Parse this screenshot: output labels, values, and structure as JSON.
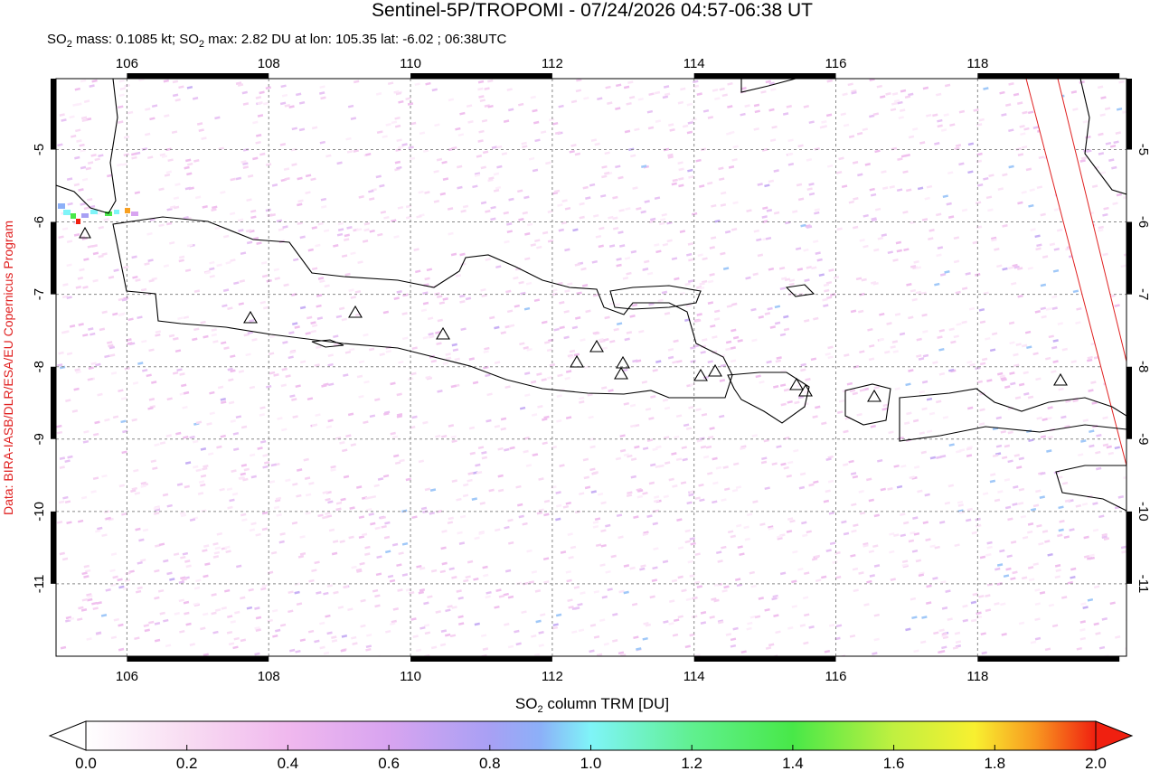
{
  "map": {
    "title": "Sentinel-5P/TROPOMI - 07/24/2026 04:57-06:38 UT",
    "subtitle": [
      "SO",
      "2",
      " mass: 0.1085 kt; SO",
      "2",
      " max: 2.82 DU at lon: 105.35 lat: -6.02 ; 06:38UTC"
    ],
    "credit": "Data: BIRA-IASB/DLR/ESA/EU Copernicus Program",
    "xlim": [
      105,
      120.1
    ],
    "ylim": [
      -12,
      -4.02
    ],
    "xticks": [
      106,
      108,
      110,
      112,
      114,
      116,
      118
    ],
    "yticks": [
      -5,
      -6,
      -7,
      -8,
      -9,
      -10,
      -11
    ],
    "grid": true
  },
  "colorbar": {
    "label": [
      "SO",
      "2",
      " column TRM [DU]"
    ],
    "lim": [
      0,
      2
    ],
    "ticks": [
      {
        "value": 0,
        "label": "0.0"
      },
      {
        "value": 0.2,
        "label": "0.2"
      },
      {
        "value": 0.4,
        "label": "0.4"
      },
      {
        "value": 0.6,
        "label": "0.6"
      },
      {
        "value": 0.8,
        "label": "0.8"
      },
      {
        "value": 1,
        "label": "1.0"
      },
      {
        "value": 1.2,
        "label": "1.2"
      },
      {
        "value": 1.4,
        "label": "1.4"
      },
      {
        "value": 1.6,
        "label": "1.6"
      },
      {
        "value": 1.8,
        "label": "1.8"
      },
      {
        "value": 2,
        "label": "2.0"
      }
    ]
  }
}
